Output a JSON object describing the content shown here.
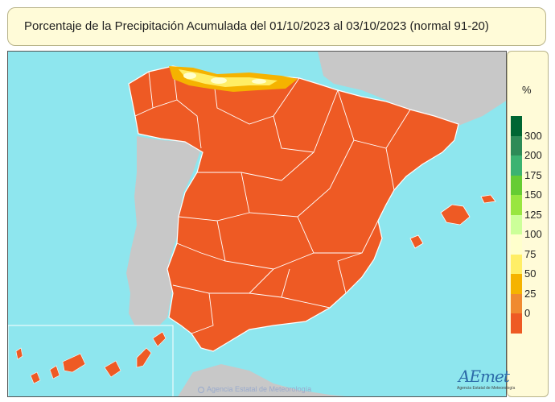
{
  "title": "Porcentaje de la Precipitación Acumulada del 01/10/2023 al 03/10/2023 (normal 91-20)",
  "legend": {
    "unit": "%",
    "ticks": [
      "300",
      "200",
      "175",
      "150",
      "125",
      "100",
      "75",
      "50",
      "25",
      "0"
    ],
    "colors": [
      "#006633",
      "#2e8b57",
      "#3cb371",
      "#66cc33",
      "#99e640",
      "#ccff99",
      "#ffffcc",
      "#ffee66",
      "#f5b300",
      "#f08a30",
      "#ee5a24"
    ]
  },
  "map": {
    "dominant_class": "0-25",
    "dominant_color": "#ee5a24",
    "north_coast_classes": [
      "25-50",
      "50-75",
      "75-100"
    ],
    "sea_color": "#8ee6ee",
    "neighbor_land_color": "#c8c8c8"
  },
  "credit": "Agencia Estatal de Meteorología",
  "logo": {
    "word": "AEmet",
    "sub": "Agencia Estatal de Meteorología"
  }
}
